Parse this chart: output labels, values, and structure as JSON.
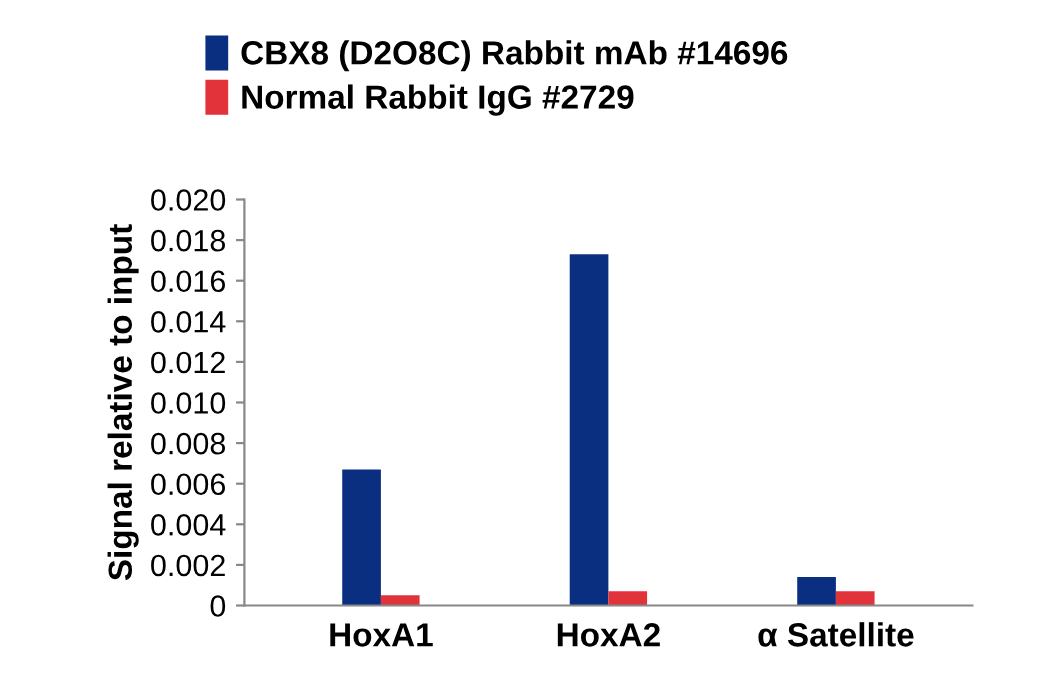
{
  "chart_data": {
    "type": "bar",
    "ylabel": "Signal relative to input",
    "categories": [
      "HoxA1",
      "HoxA2",
      "α Satellite"
    ],
    "series": [
      {
        "name": "CBX8 (D2O8C) Rabbit mAb #14696",
        "color": "#0b2f80",
        "values": [
          0.0067,
          0.0173,
          0.0014
        ]
      },
      {
        "name": "Normal Rabbit IgG #2729",
        "color": "#e2323a",
        "values": [
          0.0005,
          0.0007,
          0.0007
        ]
      }
    ],
    "ylim": [
      0,
      0.02
    ],
    "yticks": [
      {
        "value": 0,
        "label": "0"
      },
      {
        "value": 0.002,
        "label": "0.002"
      },
      {
        "value": 0.004,
        "label": "0.004"
      },
      {
        "value": 0.006,
        "label": "0.006"
      },
      {
        "value": 0.008,
        "label": "0.008"
      },
      {
        "value": 0.01,
        "label": "0.010"
      },
      {
        "value": 0.012,
        "label": "0.012"
      },
      {
        "value": 0.014,
        "label": "0.014"
      },
      {
        "value": 0.016,
        "label": "0.016"
      },
      {
        "value": 0.018,
        "label": "0.018"
      },
      {
        "value": 0.02,
        "label": "0.020"
      }
    ],
    "grid": false,
    "legend": "top"
  }
}
